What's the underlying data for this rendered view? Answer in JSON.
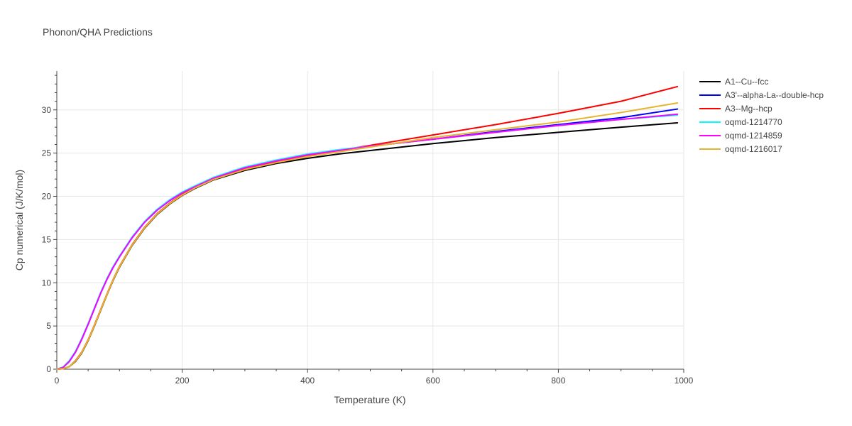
{
  "chart_data": {
    "type": "line",
    "title": "Phonon/QHA Predictions",
    "xlabel": "Temperature (K)",
    "ylabel": "Cp numerical (J/K/mol)",
    "xlim": [
      0,
      1000
    ],
    "ylim": [
      0,
      34.5
    ],
    "xticks": [
      0,
      200,
      400,
      600,
      800,
      1000
    ],
    "yticks": [
      0,
      5,
      10,
      15,
      20,
      25,
      30
    ],
    "grid": true,
    "legend_position": "top-right outside",
    "series": [
      {
        "name": "A1--Cu--fcc",
        "color": "#000000",
        "x": [
          0,
          10,
          20,
          30,
          40,
          50,
          60,
          70,
          80,
          90,
          100,
          120,
          140,
          160,
          180,
          200,
          220,
          250,
          300,
          350,
          400,
          450,
          500,
          600,
          700,
          800,
          900,
          990
        ],
        "y": [
          0,
          0.05,
          0.3,
          0.9,
          1.9,
          3.3,
          5.0,
          6.8,
          8.6,
          10.3,
          11.8,
          14.3,
          16.3,
          17.9,
          19.1,
          20.1,
          20.9,
          21.9,
          23.0,
          23.8,
          24.4,
          24.9,
          25.3,
          26.1,
          26.8,
          27.4,
          28.0,
          28.5
        ]
      },
      {
        "name": "A3'--alpha-La--double-hcp",
        "color": "#0000ff",
        "x": [
          0,
          10,
          20,
          30,
          40,
          50,
          60,
          70,
          80,
          90,
          100,
          120,
          140,
          160,
          180,
          200,
          220,
          250,
          300,
          350,
          400,
          450,
          500,
          600,
          700,
          800,
          900,
          990
        ],
        "y": [
          0,
          0.2,
          0.9,
          2.0,
          3.5,
          5.2,
          7.0,
          8.8,
          10.4,
          11.8,
          13.0,
          15.2,
          17.0,
          18.4,
          19.5,
          20.4,
          21.1,
          22.1,
          23.3,
          24.1,
          24.8,
          25.3,
          25.8,
          26.6,
          27.5,
          28.3,
          29.1,
          30.1
        ]
      },
      {
        "name": "A3--Mg--hcp",
        "color": "#ff0000",
        "x": [
          0,
          10,
          20,
          30,
          40,
          50,
          60,
          70,
          80,
          90,
          100,
          120,
          140,
          160,
          180,
          200,
          220,
          250,
          300,
          350,
          400,
          450,
          500,
          600,
          700,
          800,
          900,
          990
        ],
        "y": [
          0,
          0.05,
          0.3,
          1.0,
          2.0,
          3.4,
          5.1,
          6.9,
          8.7,
          10.4,
          11.9,
          14.4,
          16.4,
          18.0,
          19.2,
          20.2,
          21.0,
          22.0,
          23.2,
          24.0,
          24.7,
          25.3,
          25.9,
          27.1,
          28.3,
          29.6,
          31.0,
          32.7
        ]
      },
      {
        "name": "oqmd-1214770",
        "color": "#00ffff",
        "x": [
          0,
          10,
          20,
          30,
          40,
          50,
          60,
          70,
          80,
          90,
          100,
          120,
          140,
          160,
          180,
          200,
          220,
          250,
          300,
          350,
          400,
          450,
          500,
          600,
          700,
          800,
          900,
          990
        ],
        "y": [
          0,
          0.25,
          1.0,
          2.1,
          3.6,
          5.3,
          7.1,
          8.9,
          10.5,
          11.9,
          13.1,
          15.3,
          17.1,
          18.5,
          19.6,
          20.5,
          21.2,
          22.2,
          23.4,
          24.2,
          24.9,
          25.4,
          25.8,
          26.6,
          27.4,
          28.2,
          28.9,
          29.4
        ]
      },
      {
        "name": "oqmd-1214859",
        "color": "#ff00ff",
        "x": [
          0,
          10,
          20,
          30,
          40,
          50,
          60,
          70,
          80,
          90,
          100,
          120,
          140,
          160,
          180,
          200,
          220,
          250,
          300,
          350,
          400,
          450,
          500,
          600,
          700,
          800,
          900,
          990
        ],
        "y": [
          0,
          0.2,
          0.9,
          2.0,
          3.5,
          5.2,
          7.0,
          8.8,
          10.4,
          11.8,
          13.0,
          15.2,
          17.0,
          18.4,
          19.5,
          20.4,
          21.1,
          22.1,
          23.3,
          24.1,
          24.8,
          25.3,
          25.8,
          26.6,
          27.4,
          28.2,
          28.9,
          29.5
        ]
      },
      {
        "name": "oqmd-1216017",
        "color": "#e6b42d",
        "x": [
          0,
          10,
          20,
          30,
          40,
          50,
          60,
          70,
          80,
          90,
          100,
          120,
          140,
          160,
          180,
          200,
          220,
          250,
          300,
          350,
          400,
          450,
          500,
          600,
          700,
          800,
          900,
          990
        ],
        "y": [
          0,
          0.05,
          0.3,
          0.95,
          1.95,
          3.35,
          5.05,
          6.85,
          8.65,
          10.35,
          11.85,
          14.35,
          16.35,
          17.95,
          19.15,
          20.15,
          20.95,
          21.95,
          23.1,
          23.9,
          24.6,
          25.15,
          25.7,
          26.8,
          27.7,
          28.6,
          29.7,
          30.8
        ]
      }
    ]
  }
}
